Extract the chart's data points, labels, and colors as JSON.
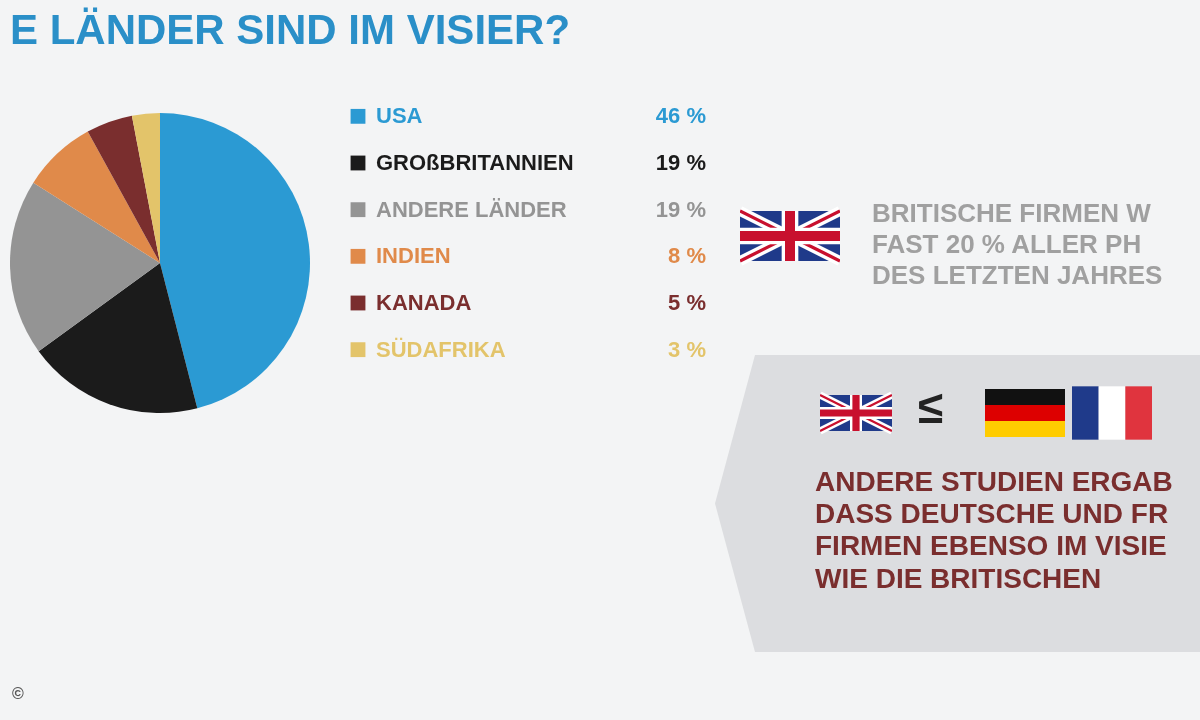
{
  "chart_data": {
    "type": "pie",
    "title": "E LÄNDER SIND IM VISIER?",
    "categories": [
      "USA",
      "GROßBRITANNIEN",
      "ANDERE LÄNDER",
      "INDIEN",
      "KANADA",
      "SÜDAFRIKA"
    ],
    "values": [
      46,
      19,
      19,
      8,
      5,
      3
    ],
    "legend": "right",
    "value_labels": [
      "46 %",
      "19 %",
      "19 %",
      "8 %",
      "5 %",
      "3 %"
    ],
    "colors": [
      "#2b9ad3",
      "#1b1b1b",
      "#949494",
      "#e08a4a",
      "#7a2e2e",
      "#e3c46a"
    ],
    "annotations": [
      "BRITISCHE FIRMEN W\nFAST 20 % ALLER PH\nDES LETZTEN JAHRES",
      "≤",
      "ANDERE STUDIEN ERGAB\nDASS DEUTSCHE UND FR\nFIRMEN EBENSO IM VISIE\nWIE DIE BRITISCHEN",
      "©"
    ]
  }
}
